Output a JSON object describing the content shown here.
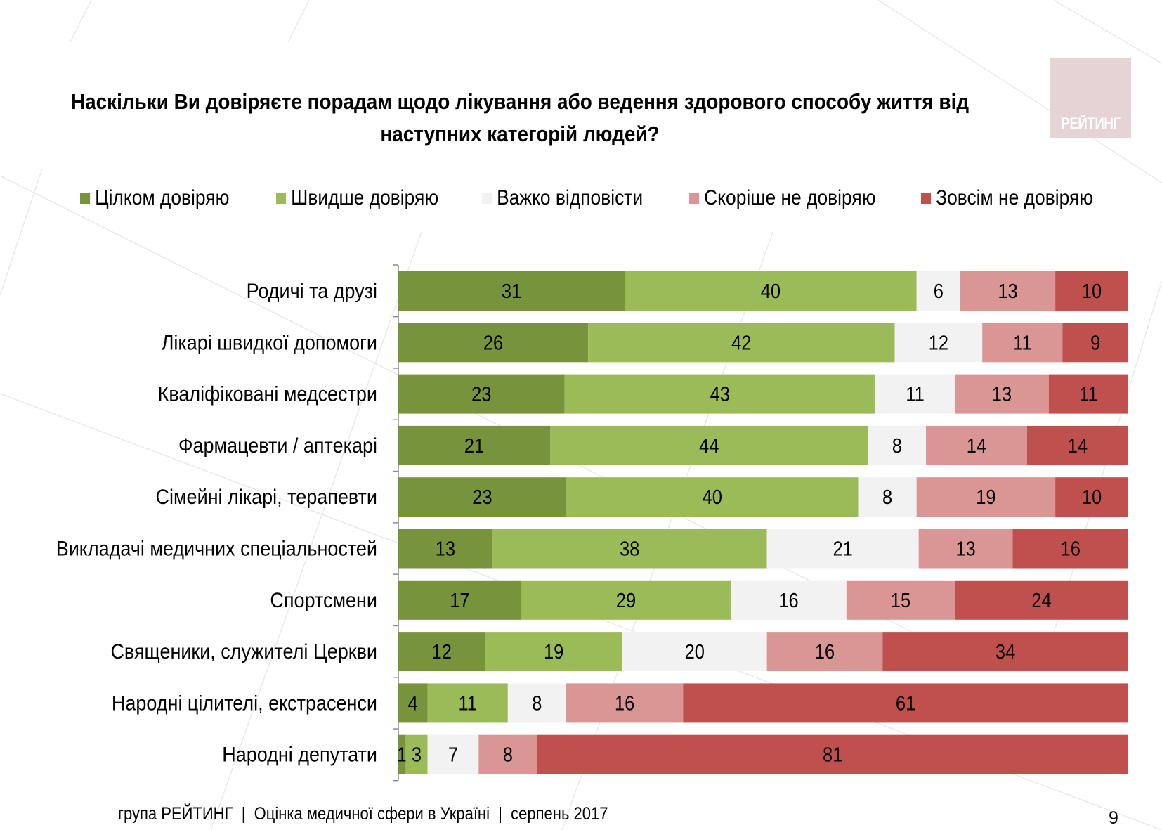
{
  "slide": {
    "title_line1": "Наскільки Ви довіряєте порадам щодо лікування або ведення здорового способу життя від",
    "title_line2": "наступних категорій людей?",
    "logo_text": "РЕЙТИНГ",
    "footer_org": "група РЕЙТИНГ",
    "footer_sep1": "|",
    "footer_study": "Оцінка медичної сфери в Україні",
    "footer_sep2": "|",
    "footer_date": "серпень 2017",
    "page_number": "9"
  },
  "chart_data": {
    "type": "bar",
    "orientation": "horizontal",
    "stacked": "100%",
    "title": "Наскільки Ви довіряєте порадам щодо лікування або ведення здорового способу життя від наступних категорій людей?",
    "xlabel": "",
    "ylabel": "",
    "xlim": [
      0,
      100
    ],
    "grid": false,
    "legend_position": "top",
    "categories": [
      "Родичі та друзі",
      "Лікарі швидкої допомоги",
      "Кваліфіковані медсестри",
      "Фармацевти / аптекарі",
      "Сімейні лікарі, терапевти",
      "Викладачі медичних спеціальностей",
      "Спортсмени",
      "Священики, служителі Церкви",
      "Народні цілителі, екстрасенси",
      "Народні депутати"
    ],
    "series": [
      {
        "name": "Цілком довіряю",
        "color": "#77933c",
        "values": [
          31,
          26,
          23,
          21,
          23,
          13,
          17,
          12,
          4,
          1
        ]
      },
      {
        "name": "Швидше довіряю",
        "color": "#9bbb59",
        "values": [
          40,
          42,
          43,
          44,
          40,
          38,
          29,
          19,
          11,
          3
        ]
      },
      {
        "name": "Важко відповісти",
        "color": "#f2f2f2",
        "values": [
          6,
          12,
          11,
          8,
          8,
          21,
          16,
          20,
          8,
          7
        ]
      },
      {
        "name": "Скоріше не довіряю",
        "color": "#d99694",
        "values": [
          13,
          11,
          13,
          14,
          19,
          13,
          15,
          16,
          16,
          8
        ]
      },
      {
        "name": "Зовсім не довіряю",
        "color": "#c0504d",
        "values": [
          10,
          9,
          11,
          14,
          10,
          16,
          24,
          34,
          61,
          81
        ]
      }
    ]
  }
}
